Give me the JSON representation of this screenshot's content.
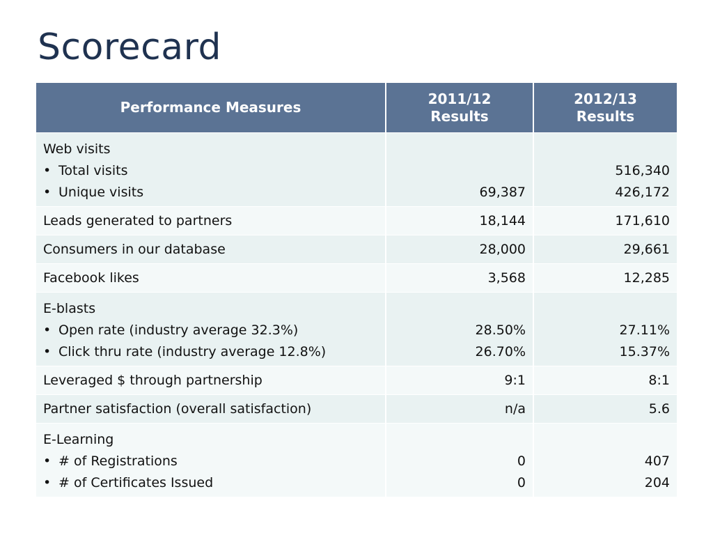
{
  "title": "Scorecard",
  "table": {
    "headers": {
      "measure": "Performance Measures",
      "col2_line1": "2011/12",
      "col2_line2": "Results",
      "col3_line1": "2012/13",
      "col3_line2": "Results"
    },
    "rows": [
      {
        "label": "Web visits",
        "sub": [
          "Total visits",
          "Unique visits"
        ],
        "y2011": [
          "",
          "69,387"
        ],
        "y2012": [
          "516,340",
          "426,172"
        ]
      },
      {
        "label": "Leads generated to partners",
        "y2011": "18,144",
        "y2012": "171,610"
      },
      {
        "label": "Consumers in our database",
        "y2011": "28,000",
        "y2012": "29,661"
      },
      {
        "label": "Facebook likes",
        "y2011": "3,568",
        "y2012": "12,285"
      },
      {
        "label": "E-blasts",
        "sub": [
          "Open rate (industry average 32.3%)",
          "Click thru rate (industry average 12.8%)"
        ],
        "y2011": [
          "28.50%",
          "26.70%"
        ],
        "y2012": [
          "27.11%",
          "15.37%"
        ]
      },
      {
        "label": "Leveraged $ through partnership",
        "y2011": "9:1",
        "y2012": "8:1"
      },
      {
        "label": "Partner satisfaction (overall satisfaction)",
        "y2011": "n/a",
        "y2012": "5.6"
      },
      {
        "label": "E-Learning",
        "sub": [
          "# of Registrations",
          "# of Certificates Issued"
        ],
        "y2011": [
          "0",
          "0"
        ],
        "y2012": [
          "407",
          "204"
        ]
      }
    ],
    "bullet": "•"
  }
}
